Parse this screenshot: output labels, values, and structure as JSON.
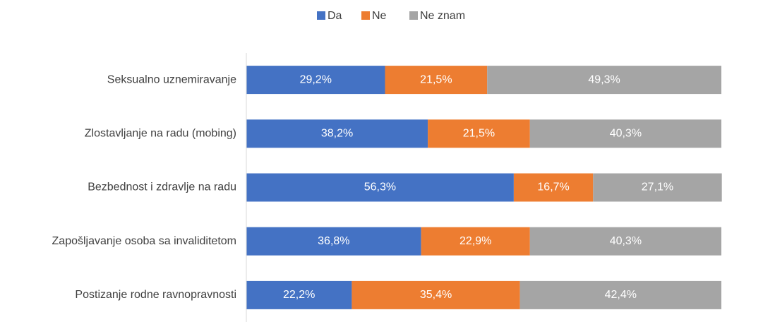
{
  "chart_data": {
    "type": "bar",
    "orientation": "horizontal",
    "stacked": true,
    "categories": [
      "Seksualno uznemiravanje",
      "Zlostavljanje na radu (mobing)",
      "Bezbednost i zdravlje na radu",
      "Zapošljavanje osoba sa invaliditetom",
      "Postizanje rodne ravnopravnosti"
    ],
    "series": [
      {
        "name": "Da",
        "color": "#4472c4",
        "values": [
          29.2,
          38.2,
          56.3,
          36.8,
          22.2
        ],
        "value_labels": [
          "29,2%",
          "38,2%",
          "56,3%",
          "36,8%",
          "22,2%"
        ]
      },
      {
        "name": "Ne",
        "color": "#ed7d31",
        "values": [
          21.5,
          21.5,
          16.7,
          22.9,
          35.4
        ],
        "value_labels": [
          "21,5%",
          "21,5%",
          "16,7%",
          "22,9%",
          "35,4%"
        ]
      },
      {
        "name": "Ne znam",
        "color": "#a5a5a5",
        "values": [
          49.3,
          40.3,
          27.1,
          40.3,
          42.4
        ],
        "value_labels": [
          "49,3%",
          "40,3%",
          "27,1%",
          "40,3%",
          "42,4%"
        ]
      }
    ],
    "xlim": [
      0,
      100
    ],
    "legend": "top"
  }
}
